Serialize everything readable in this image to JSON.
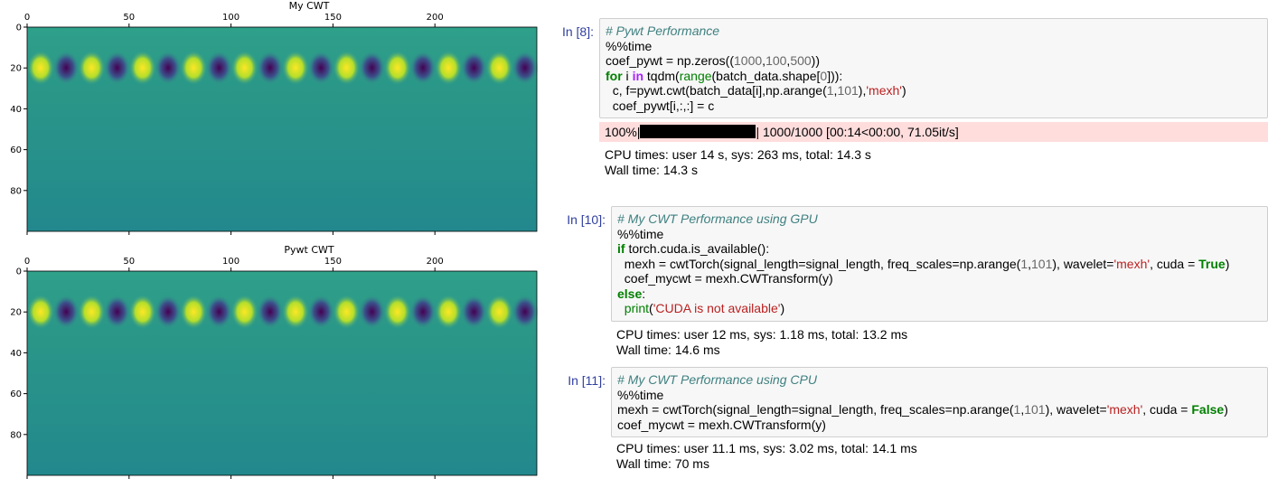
{
  "plots": [
    {
      "title": "My CWT",
      "xticks": [
        0,
        50,
        100,
        150,
        200
      ],
      "yticks": [
        0,
        20,
        40,
        60,
        80
      ],
      "xlim": [
        0,
        250
      ],
      "ylim": [
        0,
        100
      ]
    },
    {
      "title": "Pywt CWT",
      "xticks": [
        0,
        50,
        100,
        150,
        200
      ],
      "yticks": [
        0,
        20,
        40,
        60,
        80
      ],
      "xlim": [
        0,
        250
      ],
      "ylim": [
        0,
        100
      ]
    }
  ],
  "cells": [
    {
      "prompt": "In [8]:",
      "lines": [
        [
          {
            "t": "# Pywt Performance",
            "k": "comment"
          }
        ],
        [
          {
            "t": "%%time"
          }
        ],
        [
          {
            "t": "coef_pywt = np.zeros(("
          },
          {
            "t": "1000",
            "k": "number"
          },
          {
            "t": ","
          },
          {
            "t": "100",
            "k": "number"
          },
          {
            "t": ","
          },
          {
            "t": "500",
            "k": "number"
          },
          {
            "t": "))"
          }
        ],
        [
          {
            "t": "for",
            "k": "keyword"
          },
          {
            "t": " i "
          },
          {
            "t": "in",
            "k": "operator"
          },
          {
            "t": " tqdm("
          },
          {
            "t": "range",
            "k": "builtin"
          },
          {
            "t": "(batch_data.shape["
          },
          {
            "t": "0",
            "k": "number"
          },
          {
            "t": "])):"
          }
        ],
        [
          {
            "t": "  c, f=pywt.cwt(batch_data[i],np.arange("
          },
          {
            "t": "1",
            "k": "number"
          },
          {
            "t": ","
          },
          {
            "t": "101",
            "k": "number"
          },
          {
            "t": "),"
          },
          {
            "t": "'mexh'",
            "k": "string"
          },
          {
            "t": ")"
          }
        ],
        [
          {
            "t": "  coef_pywt[i,:,:] = c"
          }
        ]
      ],
      "progress": {
        "prefix": "100%|",
        "suffix": "| 1000/1000 [00:14<00:00, 71.05it/s]"
      },
      "output": [
        "CPU times: user 14 s, sys: 263 ms, total: 14.3 s",
        "Wall time: 14.3 s"
      ]
    },
    {
      "prompt": "In [10]:",
      "lines": [
        [
          {
            "t": "# My CWT Performance using GPU",
            "k": "comment"
          }
        ],
        [
          {
            "t": "%%time"
          }
        ],
        [
          {
            "t": "if",
            "k": "keyword"
          },
          {
            "t": " torch.cuda.is_available():"
          }
        ],
        [
          {
            "t": "  mexh = cwtTorch(signal_length=signal_length, freq_scales=np.arange("
          },
          {
            "t": "1",
            "k": "number"
          },
          {
            "t": ","
          },
          {
            "t": "101",
            "k": "number"
          },
          {
            "t": "), wavelet="
          },
          {
            "t": "'mexh'",
            "k": "string"
          },
          {
            "t": ", cuda = "
          },
          {
            "t": "True",
            "k": "keyword"
          },
          {
            "t": ")"
          }
        ],
        [
          {
            "t": "  coef_mycwt = mexh.CWTransform(y)"
          }
        ],
        [
          {
            "t": "else",
            "k": "keyword"
          },
          {
            "t": ":"
          }
        ],
        [
          {
            "t": "  "
          },
          {
            "t": "print",
            "k": "builtin"
          },
          {
            "t": "("
          },
          {
            "t": "'CUDA is not available'",
            "k": "string"
          },
          {
            "t": ")"
          }
        ]
      ],
      "output": [
        "CPU times: user 12 ms, sys: 1.18 ms, total: 13.2 ms",
        "Wall time: 14.6 ms"
      ]
    },
    {
      "prompt": "In [11]:",
      "lines": [
        [
          {
            "t": "# My CWT Performance using CPU",
            "k": "comment"
          }
        ],
        [
          {
            "t": "%%time"
          }
        ],
        [
          {
            "t": "mexh = cwtTorch(signal_length=signal_length, freq_scales=np.arange("
          },
          {
            "t": "1",
            "k": "number"
          },
          {
            "t": ","
          },
          {
            "t": "101",
            "k": "number"
          },
          {
            "t": "), wavelet="
          },
          {
            "t": "'mexh'",
            "k": "string"
          },
          {
            "t": ", cuda = "
          },
          {
            "t": "False",
            "k": "keyword"
          },
          {
            "t": ")"
          }
        ],
        [
          {
            "t": "coef_mycwt = mexh.CWTransform(y)"
          }
        ]
      ],
      "output": [
        "CPU times: user 11.1 ms, sys: 3.02 ms, total: 14.1 ms",
        "Wall time: 70 ms"
      ]
    }
  ]
}
